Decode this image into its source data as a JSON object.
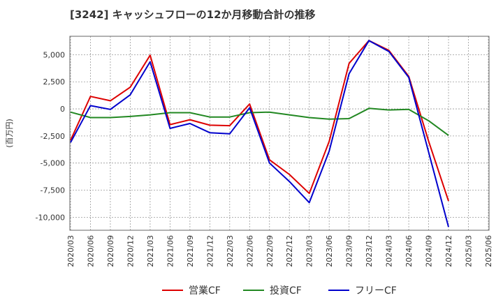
{
  "chart_data": {
    "type": "line",
    "title": "[3242]  キャッシュフローの12か月移動合計の推移",
    "ylabel": "(百万円)",
    "xlabel": "",
    "ylim": [
      -11200,
      6700
    ],
    "yticks": [
      5000,
      2500,
      0,
      -2500,
      -5000,
      -7500,
      -10000
    ],
    "ytick_labels": [
      "5,000",
      "2,500",
      "0",
      "-2,500",
      "-5,000",
      "-7,500",
      "-10,000"
    ],
    "grid": true,
    "legend_position": "bottom",
    "categories": [
      "2020/03",
      "2020/06",
      "2020/09",
      "2020/12",
      "2021/03",
      "2021/06",
      "2021/09",
      "2021/12",
      "2022/03",
      "2022/06",
      "2022/09",
      "2022/12",
      "2023/03",
      "2023/06",
      "2023/09",
      "2023/12",
      "2024/03",
      "2024/06",
      "2024/09",
      "2024/12",
      "2025/03",
      "2025/06"
    ],
    "series": [
      {
        "name": "営業CF",
        "color": "#dd0000",
        "values": [
          -2900,
          1150,
          750,
          2000,
          4950,
          -1450,
          -1000,
          -1500,
          -1550,
          450,
          -4700,
          -6050,
          -7800,
          -3000,
          4200,
          6300,
          5400,
          3000,
          -3000,
          -8500,
          null,
          null
        ]
      },
      {
        "name": "投資CF",
        "color": "#228822",
        "values": [
          -300,
          -800,
          -800,
          -700,
          -550,
          -350,
          -350,
          -750,
          -750,
          -350,
          -300,
          -550,
          -800,
          -950,
          -900,
          50,
          -100,
          -50,
          -1100,
          -2450,
          null,
          null
        ]
      },
      {
        "name": "フリーCF",
        "color": "#0000cc",
        "values": [
          -3100,
          300,
          -50,
          1300,
          4350,
          -1800,
          -1350,
          -2200,
          -2300,
          100,
          -5000,
          -6700,
          -8650,
          -3900,
          3250,
          6300,
          5300,
          2900,
          -4000,
          -10900,
          null,
          null
        ]
      }
    ]
  }
}
